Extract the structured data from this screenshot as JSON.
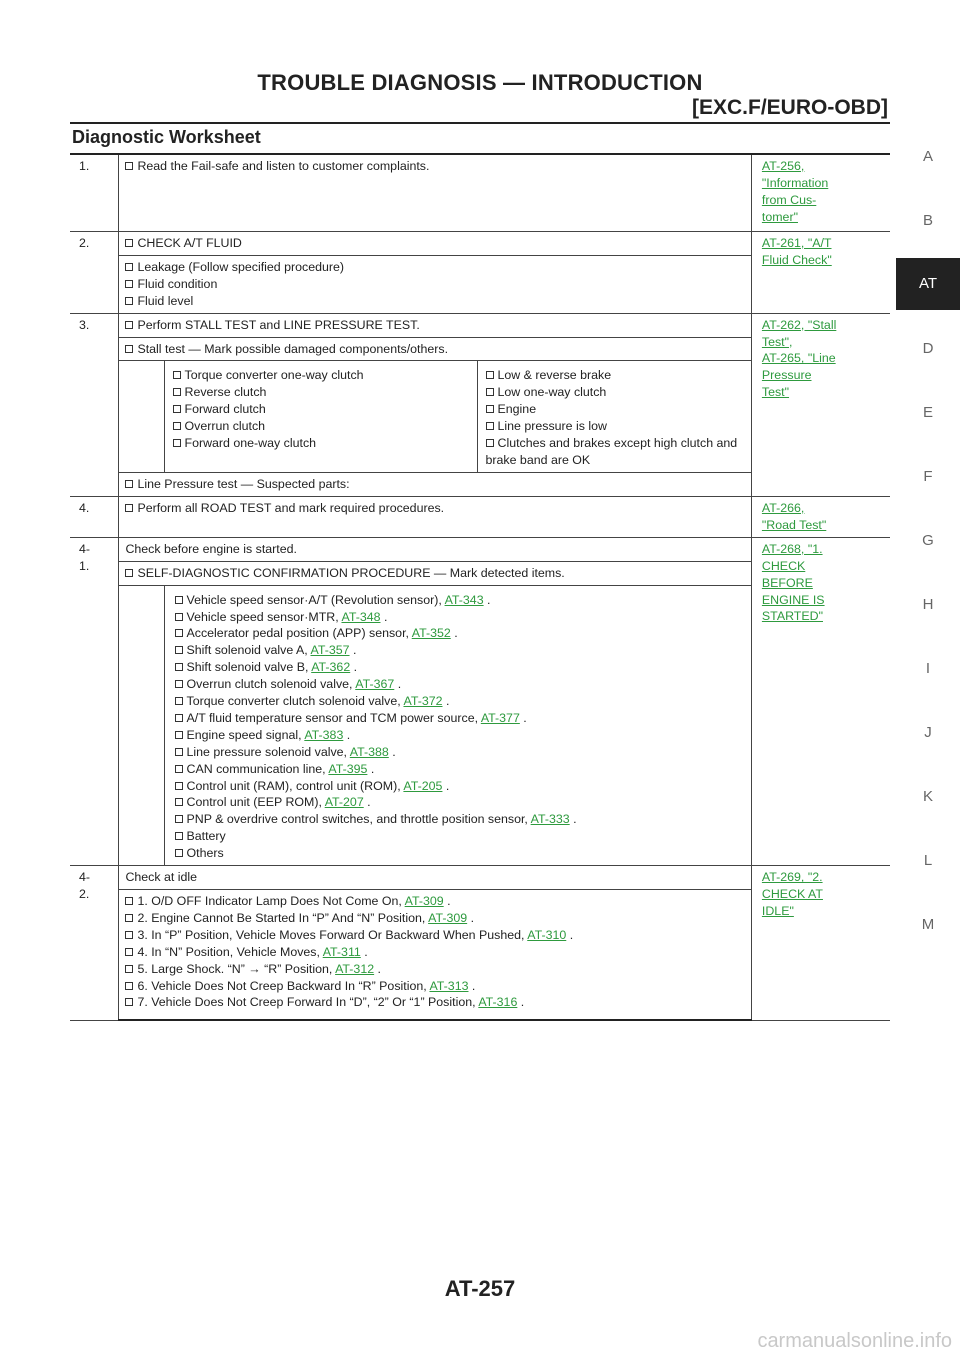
{
  "header": {
    "title": "TROUBLE DIAGNOSIS — INTRODUCTION",
    "subtitle": "[EXC.F/EURO-OBD]"
  },
  "section_title": "Diagnostic Worksheet",
  "side_tabs": [
    "A",
    "B",
    "AT",
    "D",
    "E",
    "F",
    "G",
    "H",
    "I",
    "J",
    "K",
    "L",
    "M"
  ],
  "active_tab": "AT",
  "rows": {
    "r1": {
      "num": "1.",
      "text": "Read the Fail-safe and listen to customer complaints.",
      "ref": [
        "AT-256,",
        "\"Information",
        "from Cus-",
        "tomer\""
      ]
    },
    "r2": {
      "num": "2.",
      "text": "CHECK A/T FLUID",
      "ref": [
        "AT-261, \"A/T",
        "Fluid Check\""
      ],
      "items": [
        "Leakage (Follow specified procedure)",
        "Fluid condition",
        "Fluid level"
      ]
    },
    "r3": {
      "num": "3.",
      "text": "Perform STALL TEST and LINE PRESSURE TEST.",
      "ref": [
        "AT-262, \"Stall",
        "Test\",",
        "AT-265, \"Line",
        "Pressure",
        "Test\""
      ],
      "stall": "Stall test — Mark possible damaged components/others.",
      "left": [
        "Torque converter one-way clutch",
        "Reverse clutch",
        "Forward clutch",
        "Overrun clutch",
        "Forward one-way clutch"
      ],
      "right": [
        "Low & reverse brake",
        "Low one-way clutch",
        "Engine",
        "Line pressure is low"
      ],
      "right_last": [
        "Clutches and brakes except high clutch and",
        "brake band are OK"
      ],
      "line_pressure": "Line Pressure test — Suspected parts:"
    },
    "r4": {
      "num": "4.",
      "text": "Perform all ROAD TEST and mark required procedures.",
      "ref": [
        "AT-266,",
        "\"Road Test\""
      ]
    },
    "r41": {
      "num": [
        "4-",
        "1."
      ],
      "text": "Check before engine is started.",
      "ref": [
        "AT-268, \"1.",
        "CHECK",
        "BEFORE",
        "ENGINE IS",
        "STARTED\""
      ],
      "sdc": "SELF-DIAGNOSTIC CONFIRMATION PROCEDURE — Mark detected items.",
      "items": [
        {
          "t": "Vehicle speed sensor·A/T (Revolution sensor),",
          "l": "AT-343"
        },
        {
          "t": "Vehicle speed sensor·MTR,",
          "l": "AT-348"
        },
        {
          "t": "Accelerator pedal position (APP) sensor,",
          "l": "AT-352"
        },
        {
          "t": "Shift solenoid valve A,",
          "l": "AT-357"
        },
        {
          "t": "Shift solenoid valve B,",
          "l": "AT-362"
        },
        {
          "t": "Overrun clutch solenoid valve,",
          "l": "AT-367"
        },
        {
          "t": "Torque converter clutch solenoid valve,",
          "l": "AT-372"
        },
        {
          "t": "A/T fluid temperature sensor and TCM power source,",
          "l": "AT-377"
        },
        {
          "t": "Engine speed signal,",
          "l": "AT-383"
        },
        {
          "t": "Line pressure solenoid valve,",
          "l": "AT-388"
        },
        {
          "t": "CAN communication line,",
          "l": "AT-395"
        },
        {
          "t": "Control unit (RAM), control unit (ROM),",
          "l": "AT-205"
        },
        {
          "t": "Control unit (EEP ROM),",
          "l": "AT-207"
        },
        {
          "t": "PNP & overdrive control switches, and throttle position sensor,",
          "l": "AT-333"
        },
        {
          "t": "Battery",
          "l": ""
        },
        {
          "t": "Others",
          "l": ""
        }
      ]
    },
    "r42": {
      "num": [
        "4-",
        "2."
      ],
      "text": "Check at idle",
      "ref": [
        "AT-269, \"2.",
        "CHECK AT",
        "IDLE\""
      ],
      "items": [
        {
          "t": "1. O/D OFF Indicator Lamp Does Not Come On,",
          "l": "AT-309"
        },
        {
          "t": "2. Engine Cannot Be Started In “P” And “N” Position,",
          "l": "AT-309"
        },
        {
          "t": "3. In “P” Position, Vehicle Moves Forward Or Backward When Pushed,",
          "l": "AT-310"
        },
        {
          "t": "4. In “N” Position, Vehicle Moves,",
          "l": "AT-311"
        },
        {
          "t": "5. Large Shock. “N” → “R” Position,",
          "l": "AT-312"
        },
        {
          "t": "6. Vehicle Does Not Creep Backward In “R” Position,",
          "l": "AT-313"
        },
        {
          "t": "7. Vehicle Does Not Creep Forward In “D”, “2” Or “1” Position,",
          "l": "AT-316"
        }
      ]
    }
  },
  "page_number": "AT-257",
  "watermark": "carmanualsonline.info",
  "colors": {
    "link": "#2e9a3e",
    "active_tab_bg": "#222222"
  }
}
